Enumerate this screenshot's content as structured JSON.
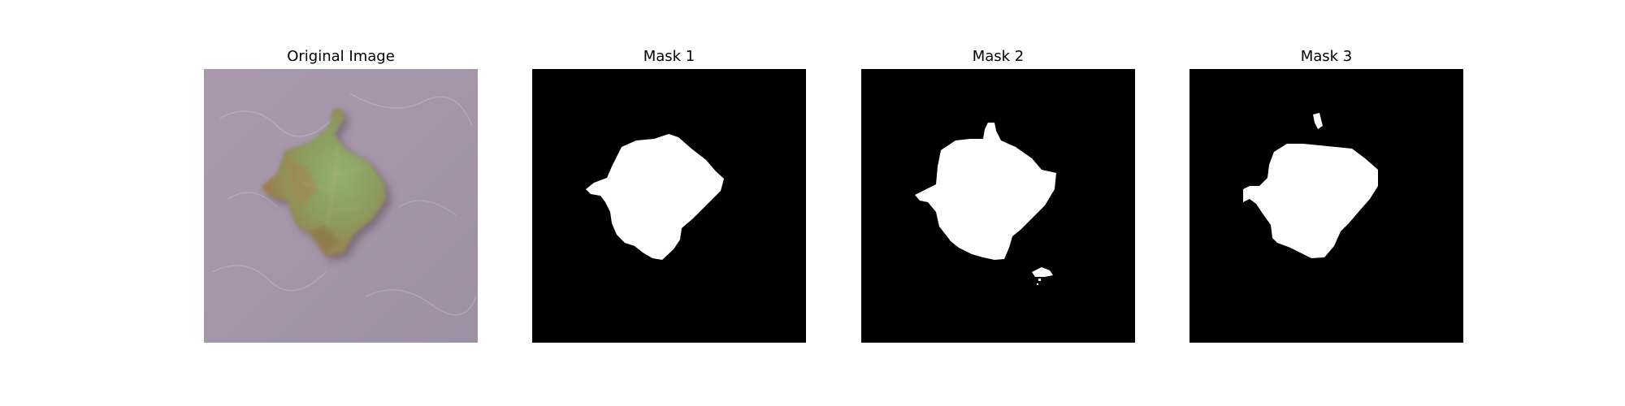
{
  "figure": {
    "panels": [
      {
        "title": "Original Image",
        "kind": "photo"
      },
      {
        "title": "Mask 1",
        "kind": "mask"
      },
      {
        "title": "Mask 2",
        "kind": "mask"
      },
      {
        "title": "Mask 3",
        "kind": "mask"
      }
    ]
  },
  "colors": {
    "mask_background": "#000000",
    "mask_foreground": "#ffffff",
    "photo_background": "#a898ab",
    "leaf_green": "#8fa86a",
    "leaf_brown": "#9a7a4a"
  }
}
